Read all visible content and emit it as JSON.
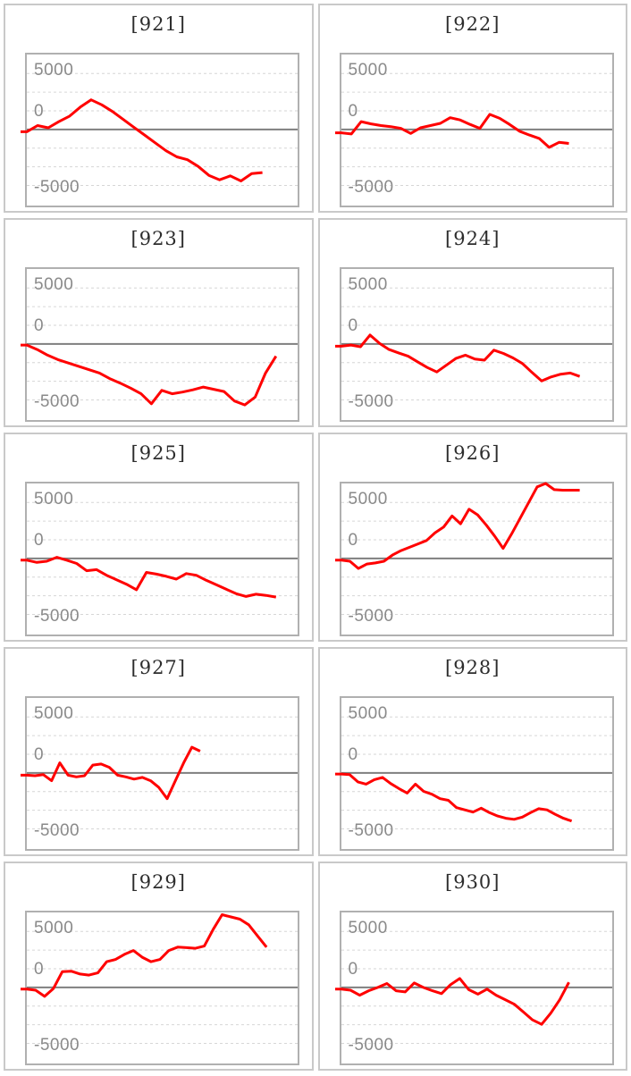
{
  "page": {
    "background": "#ffffff"
  },
  "colors": {
    "line": "#ff0000",
    "grid_dotted": "#d6d6d6",
    "zero_line": "#7f7f7f",
    "tick_label": "#8a8a8a",
    "plot_border": "#b0b0b0",
    "cell_border": "#c9c9c9",
    "title": "#2d2d2d"
  },
  "axis": {
    "tick_labels": [
      "5000",
      "0",
      "-5000"
    ],
    "ylim": [
      -6800,
      6700
    ],
    "gridline_values": [
      5000,
      3333,
      1667,
      0,
      -1667,
      -3333,
      -5000
    ],
    "grid_on": true,
    "legend": "none"
  },
  "chart_data": [
    {
      "type": "line",
      "title": "[921]",
      "x_end_fraction": 0.87,
      "values": [
        -200,
        350,
        150,
        700,
        1200,
        2000,
        2650,
        2200,
        1600,
        900,
        200,
        -500,
        -1200,
        -1900,
        -2450,
        -2700,
        -3300,
        -4100,
        -4500,
        -4150,
        -4600,
        -3950,
        -3850
      ]
    },
    {
      "type": "line",
      "title": "[922]",
      "x_end_fraction": 0.84,
      "values": [
        -300,
        -400,
        700,
        500,
        350,
        250,
        100,
        -350,
        150,
        350,
        550,
        1050,
        850,
        450,
        100,
        1350,
        1000,
        450,
        -150,
        -500,
        -800,
        -1600,
        -1150,
        -1250
      ]
    },
    {
      "type": "line",
      "title": "[923]",
      "x_end_fraction": 0.92,
      "values": [
        -100,
        -500,
        -1000,
        -1400,
        -1700,
        -2000,
        -2300,
        -2600,
        -3100,
        -3500,
        -3950,
        -4450,
        -5350,
        -4150,
        -4450,
        -4300,
        -4100,
        -3850,
        -4050,
        -4250,
        -5100,
        -5450,
        -4750,
        -2600,
        -1100
      ]
    },
    {
      "type": "line",
      "title": "[924]",
      "x_end_fraction": 0.88,
      "values": [
        -200,
        -100,
        -250,
        800,
        50,
        -500,
        -800,
        -1100,
        -1600,
        -2100,
        -2500,
        -1900,
        -1300,
        -1000,
        -1350,
        -1450,
        -550,
        -850,
        -1250,
        -1750,
        -2550,
        -3300,
        -2950,
        -2700,
        -2600,
        -2900
      ]
    },
    {
      "type": "line",
      "title": "[925]",
      "x_end_fraction": 0.92,
      "values": [
        -150,
        -350,
        -250,
        100,
        -150,
        -450,
        -1100,
        -1000,
        -1500,
        -1900,
        -2300,
        -2800,
        -1250,
        -1400,
        -1600,
        -1850,
        -1350,
        -1500,
        -1950,
        -2350,
        -2750,
        -3150,
        -3400,
        -3200,
        -3300,
        -3450
      ]
    },
    {
      "type": "line",
      "title": "[926]",
      "x_end_fraction": 0.88,
      "values": [
        -150,
        -250,
        -900,
        -500,
        -400,
        -250,
        300,
        700,
        1000,
        1300,
        1600,
        2300,
        2800,
        3800,
        3100,
        4400,
        3900,
        3000,
        2000,
        900,
        2200,
        3600,
        5000,
        6400,
        6700,
        6150,
        6100,
        6100,
        6100
      ]
    },
    {
      "type": "line",
      "title": "[927]",
      "x_end_fraction": 0.64,
      "values": [
        -200,
        -250,
        -150,
        -700,
        900,
        -200,
        -350,
        -250,
        700,
        800,
        500,
        -200,
        -350,
        -550,
        -400,
        -700,
        -1300,
        -2300,
        -700,
        900,
        2300,
        1950
      ]
    },
    {
      "type": "line",
      "title": "[928]",
      "x_end_fraction": 0.85,
      "values": [
        -100,
        -150,
        -800,
        -1000,
        -600,
        -400,
        -950,
        -1400,
        -1800,
        -1000,
        -1650,
        -1900,
        -2300,
        -2450,
        -3100,
        -3300,
        -3500,
        -3150,
        -3550,
        -3850,
        -4050,
        -4150,
        -3950,
        -3550,
        -3200,
        -3300,
        -3700,
        -4050,
        -4300
      ]
    },
    {
      "type": "line",
      "title": "[929]",
      "x_end_fraction": 0.885,
      "values": [
        -150,
        -250,
        -800,
        -100,
        1400,
        1450,
        1200,
        1100,
        1300,
        2300,
        2500,
        2950,
        3300,
        2700,
        2300,
        2500,
        3300,
        3600,
        3550,
        3500,
        3700,
        5200,
        6500,
        6300,
        6100,
        5600,
        4600,
        3600
      ]
    },
    {
      "type": "line",
      "title": "[930]",
      "x_end_fraction": 0.84,
      "values": [
        -150,
        -250,
        -700,
        -300,
        0,
        350,
        -300,
        -400,
        400,
        0,
        -300,
        -550,
        250,
        800,
        -200,
        -600,
        -150,
        -700,
        -1100,
        -1500,
        -2200,
        -2900,
        -3300,
        -2300,
        -1100,
        450
      ]
    }
  ]
}
